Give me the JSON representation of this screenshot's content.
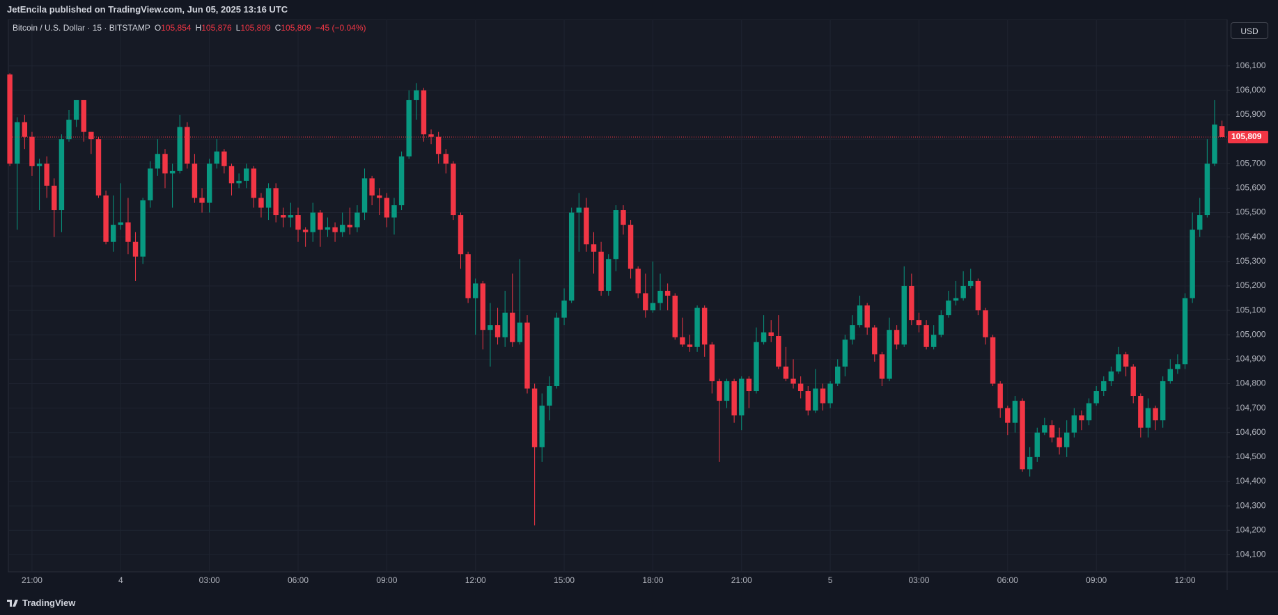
{
  "header": {
    "publisher": "JetEncila published on TradingView.com, Jun 05, 2025 13:16 UTC"
  },
  "footer": {
    "brand": "TradingView"
  },
  "currency": "USD",
  "chart_data": {
    "type": "candlestick",
    "title": "Bitcoin / U.S. Dollar · 15 · BITSTAMP",
    "legend": [
      {
        "key": "O",
        "value": "105,854"
      },
      {
        "key": "H",
        "value": "105,876"
      },
      {
        "key": "L",
        "value": "105,809"
      },
      {
        "key": "C",
        "value": "105,809"
      }
    ],
    "change": "−45 (−0.04%)",
    "up_color": "#089981",
    "down_color": "#f23645",
    "grid": true,
    "candles": {
      "open": [
        106065,
        105700,
        105870,
        105810,
        105690,
        105700,
        105610,
        105510,
        105800,
        105880,
        105960,
        105830,
        105800,
        105570,
        105380,
        105450,
        105460,
        105380,
        105320,
        105550,
        105680,
        105740,
        105660,
        105670,
        105850,
        105700,
        105560,
        105540,
        105700,
        105750,
        105690,
        105620,
        105630,
        105680,
        105560,
        105520,
        105600,
        105490,
        105480,
        105490,
        105430,
        105420,
        105500,
        105430,
        105440,
        105420,
        105450,
        105440,
        105500,
        105640,
        105570,
        105560,
        105480,
        105530,
        105730,
        105960,
        106000,
        105820,
        105810,
        105740,
        105700,
        105490,
        105330,
        105150,
        105210,
        105020,
        105040,
        104990,
        105090,
        104970,
        105050,
        104780,
        104540,
        104710,
        104790,
        105070,
        105140,
        105500,
        105520,
        105370,
        105340,
        105180,
        105310,
        105510,
        105450,
        105270,
        105170,
        105100,
        105130,
        105180,
        105160,
        104990,
        104960,
        104950,
        105110,
        104960,
        104810,
        104730,
        104810,
        104670,
        104820,
        104770,
        104970,
        105010,
        104995,
        104870,
        104820,
        104800,
        104770,
        104690,
        104780,
        104720,
        104800,
        104870,
        104980,
        105040,
        105120,
        105030,
        104920,
        104820,
        105020,
        104960,
        105200,
        105060,
        105040,
        104950,
        105000,
        105080,
        105140,
        105150,
        105200,
        105220,
        105100,
        104990,
        104800,
        104700,
        104640,
        104730,
        104450,
        104500,
        104600,
        104630,
        104580,
        104540,
        104600,
        104670,
        104650,
        104720,
        104770,
        104810,
        104850,
        104920,
        104870,
        104750,
        104620,
        104700,
        104650,
        104810,
        104860,
        104880,
        105150,
        105430,
        105490,
        105700,
        105854
      ],
      "high": [
        106070,
        105890,
        105900,
        105830,
        105720,
        105730,
        105640,
        105820,
        105920,
        105960,
        105960,
        105830,
        105810,
        105590,
        105570,
        105620,
        105560,
        105420,
        105560,
        105710,
        105800,
        105760,
        105700,
        105900,
        105870,
        105740,
        105600,
        105720,
        105800,
        105760,
        105700,
        105660,
        105700,
        105690,
        105580,
        105620,
        105620,
        105520,
        105540,
        105520,
        105440,
        105540,
        105510,
        105480,
        105460,
        105500,
        105520,
        105530,
        105680,
        105650,
        105600,
        105580,
        105560,
        105750,
        106000,
        106030,
        106010,
        105840,
        105830,
        105760,
        105710,
        105500,
        105340,
        105230,
        105220,
        105130,
        105110,
        105180,
        105250,
        105310,
        105080,
        104800,
        104760,
        104830,
        105090,
        105190,
        105520,
        105580,
        105560,
        105420,
        105380,
        105330,
        105530,
        105530,
        105470,
        105280,
        105250,
        105300,
        105250,
        105210,
        105170,
        105070,
        105000,
        105120,
        105120,
        104970,
        104820,
        104820,
        104820,
        104830,
        104830,
        105030,
        105080,
        105060,
        105080,
        104950,
        104900,
        104830,
        104790,
        104860,
        104800,
        104810,
        104900,
        105000,
        105080,
        105160,
        105130,
        105040,
        104930,
        105070,
        105040,
        105280,
        105250,
        105090,
        105060,
        105040,
        105100,
        105180,
        105220,
        105260,
        105270,
        105230,
        105110,
        105000,
        104810,
        104710,
        104750,
        104740,
        104540,
        104620,
        104660,
        104650,
        104620,
        104650,
        104700,
        104690,
        104740,
        104790,
        104830,
        104870,
        104950,
        104930,
        104880,
        104760,
        104740,
        104710,
        104830,
        104900,
        104920,
        105170,
        105500,
        105560,
        105800,
        105960,
        105876
      ],
      "low": [
        105690,
        105430,
        105760,
        105650,
        105510,
        105560,
        105400,
        105420,
        105790,
        105850,
        105790,
        105740,
        105560,
        105370,
        105340,
        105430,
        105330,
        105220,
        105290,
        105520,
        105650,
        105600,
        105520,
        105660,
        105680,
        105540,
        105500,
        105500,
        105680,
        105660,
        105570,
        105600,
        105600,
        105520,
        105480,
        105470,
        105460,
        105440,
        105440,
        105380,
        105360,
        105380,
        105360,
        105400,
        105380,
        105400,
        105410,
        105420,
        105470,
        105530,
        105490,
        105440,
        105410,
        105510,
        105720,
        105880,
        105790,
        105780,
        105700,
        105660,
        105470,
        105270,
        105130,
        105000,
        104940,
        104870,
        104960,
        104950,
        104950,
        104960,
        104760,
        104220,
        104480,
        104650,
        104780,
        105040,
        105130,
        105340,
        105340,
        105250,
        105160,
        105160,
        105260,
        105410,
        105230,
        105150,
        105070,
        105090,
        105100,
        105100,
        104980,
        104950,
        104930,
        104930,
        104910,
        104760,
        104480,
        104700,
        104640,
        104610,
        104700,
        104760,
        104960,
        104970,
        104860,
        104810,
        104780,
        104740,
        104670,
        104680,
        104690,
        104700,
        104790,
        104830,
        104960,
        105030,
        105000,
        104890,
        104790,
        104810,
        104940,
        104950,
        105040,
        105010,
        104940,
        104940,
        104990,
        105070,
        105120,
        105140,
        105190,
        105080,
        104960,
        104790,
        104660,
        104590,
        104600,
        104440,
        104420,
        104480,
        104590,
        104560,
        104510,
        104500,
        104580,
        104610,
        104630,
        104710,
        104750,
        104790,
        104840,
        104830,
        104720,
        104580,
        104580,
        104610,
        104620,
        104800,
        104840,
        104860,
        105130,
        105400,
        105480,
        105690,
        105809
      ],
      "close": [
        105700,
        105870,
        105810,
        105690,
        105700,
        105610,
        105510,
        105800,
        105880,
        105960,
        105830,
        105800,
        105570,
        105380,
        105450,
        105460,
        105380,
        105320,
        105550,
        105680,
        105740,
        105660,
        105670,
        105850,
        105700,
        105560,
        105540,
        105700,
        105750,
        105690,
        105620,
        105630,
        105680,
        105560,
        105520,
        105600,
        105490,
        105480,
        105490,
        105430,
        105420,
        105500,
        105430,
        105440,
        105420,
        105450,
        105440,
        105500,
        105640,
        105570,
        105560,
        105480,
        105530,
        105730,
        105960,
        106000,
        105820,
        105810,
        105740,
        105700,
        105490,
        105330,
        105150,
        105210,
        105020,
        105040,
        104990,
        105090,
        104970,
        105050,
        104780,
        104540,
        104710,
        104790,
        105070,
        105140,
        105500,
        105520,
        105370,
        105340,
        105180,
        105310,
        105510,
        105450,
        105270,
        105170,
        105100,
        105130,
        105180,
        105160,
        104990,
        104960,
        104950,
        105110,
        104960,
        104810,
        104730,
        104810,
        104670,
        104820,
        104770,
        104970,
        105010,
        104995,
        104870,
        104820,
        104800,
        104770,
        104690,
        104780,
        104720,
        104800,
        104870,
        104980,
        105040,
        105120,
        105030,
        104920,
        104820,
        105020,
        104960,
        105200,
        105060,
        105040,
        104950,
        105000,
        105080,
        105140,
        105150,
        105200,
        105220,
        105100,
        104990,
        104800,
        104700,
        104640,
        104730,
        104450,
        104500,
        104600,
        104630,
        104580,
        104540,
        104600,
        104670,
        104650,
        104720,
        104770,
        104810,
        104850,
        104920,
        104870,
        104750,
        104620,
        104700,
        104650,
        104810,
        104860,
        104880,
        105150,
        105430,
        105490,
        105700,
        105860,
        105809
      ]
    },
    "last_price": {
      "value": 105809,
      "label": "105,809"
    },
    "xlim": [
      -0.2,
      164.7
    ],
    "xticks": [
      {
        "value": 3,
        "label": "21:00"
      },
      {
        "value": 15,
        "label": "4"
      },
      {
        "value": 27,
        "label": "03:00"
      },
      {
        "value": 39,
        "label": "06:00"
      },
      {
        "value": 51,
        "label": "09:00"
      },
      {
        "value": 63,
        "label": "12:00"
      },
      {
        "value": 75,
        "label": "15:00"
      },
      {
        "value": 87,
        "label": "18:00"
      },
      {
        "value": 99,
        "label": "21:00"
      },
      {
        "value": 111,
        "label": "5"
      },
      {
        "value": 123,
        "label": "03:00"
      },
      {
        "value": 135,
        "label": "06:00"
      },
      {
        "value": 147,
        "label": "09:00"
      },
      {
        "value": 159,
        "label": "12:00"
      }
    ],
    "ylim": [
      104030,
      106290
    ],
    "yticks": [
      {
        "value": 104100,
        "label": "104,100"
      },
      {
        "value": 104200,
        "label": "104,200"
      },
      {
        "value": 104300,
        "label": "104,300"
      },
      {
        "value": 104400,
        "label": "104,400"
      },
      {
        "value": 104500,
        "label": "104,500"
      },
      {
        "value": 104600,
        "label": "104,600"
      },
      {
        "value": 104700,
        "label": "104,700"
      },
      {
        "value": 104800,
        "label": "104,800"
      },
      {
        "value": 104900,
        "label": "104,900"
      },
      {
        "value": 105000,
        "label": "105,000"
      },
      {
        "value": 105100,
        "label": "105,100"
      },
      {
        "value": 105200,
        "label": "105,200"
      },
      {
        "value": 105300,
        "label": "105,300"
      },
      {
        "value": 105400,
        "label": "105,400"
      },
      {
        "value": 105500,
        "label": "105,500"
      },
      {
        "value": 105600,
        "label": "105,600"
      },
      {
        "value": 105700,
        "label": "105,700"
      },
      {
        "value": 105800,
        "label": "105,800"
      },
      {
        "value": 105900,
        "label": "105,900"
      },
      {
        "value": 106000,
        "label": "106,000"
      },
      {
        "value": 106100,
        "label": "106,100"
      }
    ]
  }
}
